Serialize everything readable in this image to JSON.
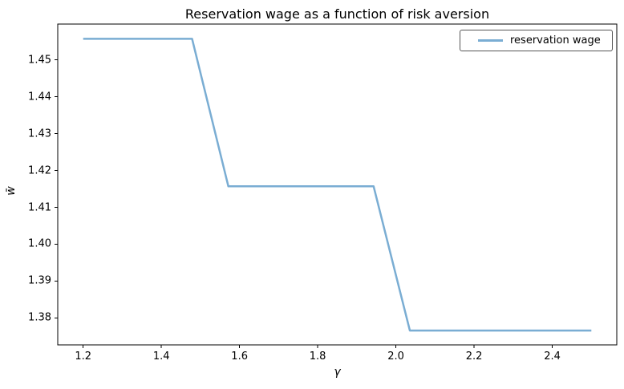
{
  "chart_data": {
    "type": "line",
    "title": "Reservation wage as a function of risk aversion",
    "xlabel": "γ",
    "ylabel": "w̄",
    "x": [
      1.2,
      1.2929,
      1.3857,
      1.4786,
      1.5714,
      1.6643,
      1.7571,
      1.85,
      1.9429,
      2.0357,
      2.1286,
      2.2214,
      2.3143,
      2.4071,
      2.5
    ],
    "y": [
      1.4557,
      1.4557,
      1.4557,
      1.4557,
      1.4157,
      1.4157,
      1.4157,
      1.4157,
      1.4157,
      1.3766,
      1.3766,
      1.3766,
      1.3766,
      1.3766,
      1.3766
    ],
    "x_ticks": [
      1.2,
      1.4,
      1.6,
      1.8,
      2.0,
      2.2,
      2.4
    ],
    "x_tick_labels": [
      "1.2",
      "1.4",
      "1.6",
      "1.8",
      "2.0",
      "2.2",
      "2.4"
    ],
    "y_ticks": [
      1.38,
      1.39,
      1.4,
      1.41,
      1.42,
      1.43,
      1.44,
      1.45
    ],
    "y_tick_labels": [
      "1.38",
      "1.39",
      "1.40",
      "1.41",
      "1.42",
      "1.43",
      "1.44",
      "1.45"
    ],
    "xlim": [
      1.135,
      2.565
    ],
    "ylim": [
      1.3727,
      1.4597
    ],
    "grid": false,
    "legend": {
      "position": "upper right",
      "entries": [
        {
          "label": "reservation wage",
          "color": "#7aadd3"
        }
      ]
    },
    "line_color": "#7aadd3",
    "axis_color": "#000000"
  }
}
